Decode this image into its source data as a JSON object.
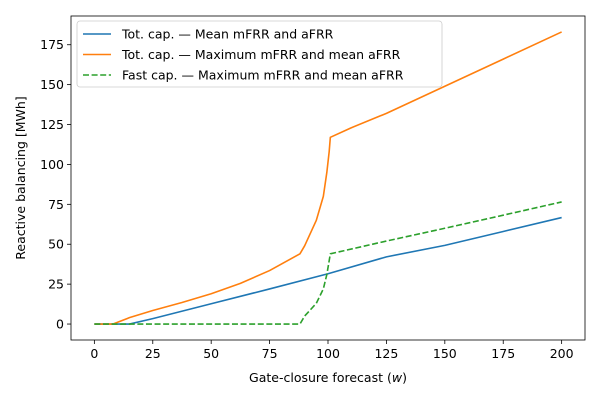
{
  "chart_data": {
    "type": "line",
    "xlabel_prefix": "Gate-closure forecast (",
    "xlabel_var": "w",
    "xlabel_suffix": ")",
    "ylabel": "Reactive balancing [MWh]",
    "xlim": [
      -10,
      210
    ],
    "ylim": [
      -10,
      193
    ],
    "xticks": [
      0,
      25,
      50,
      75,
      100,
      125,
      150,
      175,
      200
    ],
    "yticks": [
      0,
      25,
      50,
      75,
      100,
      125,
      150,
      175
    ],
    "grid": false,
    "legend_position": "top-left",
    "series": [
      {
        "name": "Tot. cap. — Mean mFRR and aFRR",
        "color": "#1f77b4",
        "dash": "solid",
        "x": [
          0,
          15,
          25,
          50,
          75,
          100,
          125,
          150,
          175,
          200
        ],
        "y": [
          0,
          0,
          3.4,
          12.7,
          22,
          31.5,
          42.1,
          49.3,
          58,
          66.7
        ]
      },
      {
        "name": "Tot. cap. — Maximum mFRR and mean aFRR",
        "color": "#ff7f0e",
        "dash": "solid",
        "x": [
          0,
          8,
          15,
          25,
          37.5,
          50,
          62.5,
          75,
          88,
          90,
          95,
          98,
          99.5,
          100.5,
          101,
          110,
          125,
          150,
          175,
          200
        ],
        "y": [
          0,
          0,
          4,
          8.5,
          13.5,
          19,
          25.5,
          33.5,
          44,
          49,
          65,
          80,
          95,
          108,
          117,
          123,
          132,
          149,
          166,
          183
        ]
      },
      {
        "name": "Fast cap. — Maximum mFRR and mean aFRR",
        "color": "#2ca02c",
        "dash": "dashed",
        "x": [
          0,
          88,
          90,
          95,
          98,
          99.5,
          101,
          125,
          150,
          175,
          200
        ],
        "y": [
          0,
          0,
          5,
          13,
          22,
          31,
          44,
          52,
          60,
          68.2,
          76.5
        ]
      }
    ]
  }
}
